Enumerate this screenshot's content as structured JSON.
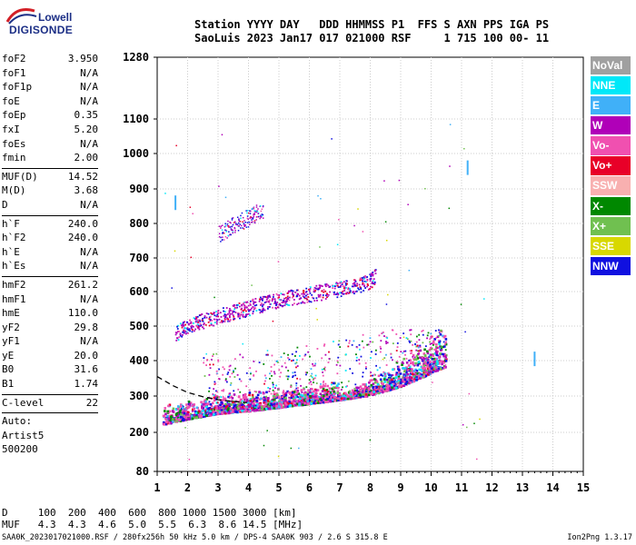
{
  "logo": {
    "line1": "Lowell",
    "line2": "DIGISONDE"
  },
  "header": {
    "line1": "Station YYYY DAY   DDD HHMMSS P1  FFS S AXN PPS IGA PS",
    "line2": "SaoLuis 2023 Jan17 017 021000 RSF     1 715 100 00- 11"
  },
  "params": {
    "group1": [
      {
        "name": "foF2",
        "value": "3.950"
      },
      {
        "name": "foF1",
        "value": "N/A"
      },
      {
        "name": "foF1p",
        "value": "N/A"
      },
      {
        "name": "foE",
        "value": "N/A"
      },
      {
        "name": "foEp",
        "value": "0.35"
      },
      {
        "name": "fxI",
        "value": "5.20"
      },
      {
        "name": "foEs",
        "value": "N/A"
      },
      {
        "name": "fmin",
        "value": "2.00"
      }
    ],
    "group2": [
      {
        "name": "MUF(D)",
        "value": "14.52"
      },
      {
        "name": "M(D)",
        "value": "3.68"
      },
      {
        "name": "D",
        "value": "N/A"
      }
    ],
    "group3": [
      {
        "name": "h`F",
        "value": "240.0"
      },
      {
        "name": "h`F2",
        "value": "240.0"
      },
      {
        "name": "h`E",
        "value": "N/A"
      },
      {
        "name": "h`Es",
        "value": "N/A"
      }
    ],
    "group4": [
      {
        "name": "hmF2",
        "value": "261.2"
      },
      {
        "name": "hmF1",
        "value": "N/A"
      },
      {
        "name": "hmE",
        "value": "110.0"
      },
      {
        "name": "yF2",
        "value": "29.8"
      },
      {
        "name": "yF1",
        "value": "N/A"
      },
      {
        "name": "yE",
        "value": "20.0"
      },
      {
        "name": "B0",
        "value": "31.6"
      },
      {
        "name": "B1",
        "value": "1.74"
      }
    ],
    "group5": [
      {
        "name": "C-level",
        "value": "22"
      }
    ],
    "auto": [
      "Auto:",
      "Artist5",
      "500200"
    ]
  },
  "legend": [
    {
      "label": "NoVal",
      "color": "#a0a0a0"
    },
    {
      "label": "NNE",
      "color": "#00e8f8"
    },
    {
      "label": "E",
      "color": "#40b0f8"
    },
    {
      "label": "W",
      "color": "#b000b8"
    },
    {
      "label": "Vo-",
      "color": "#f050b0"
    },
    {
      "label": "Vo+",
      "color": "#e80028"
    },
    {
      "label": "SSW",
      "color": "#f8b0b0"
    },
    {
      "label": "X-",
      "color": "#008800"
    },
    {
      "label": "X+",
      "color": "#70c050"
    },
    {
      "label": "SSE",
      "color": "#d8d800"
    },
    {
      "label": "NNW",
      "color": "#1010e0"
    }
  ],
  "chart_data": {
    "type": "scatter",
    "title": "",
    "xlabel": "",
    "ylabel": "",
    "xlim": [
      1,
      15
    ],
    "ylim": [
      80,
      1280
    ],
    "xticks": [
      "1",
      "2",
      "3",
      "4",
      "5",
      "6",
      "7",
      "8",
      "9",
      "10",
      "11",
      "12",
      "13",
      "14",
      "15"
    ],
    "yticks": [
      "80",
      "200",
      "300",
      "400",
      "500",
      "600",
      "700",
      "800",
      "900",
      "1000",
      "1100",
      "1280"
    ],
    "y_scale": "non-linear (virtual height, km)",
    "grid": true,
    "series": [
      {
        "name": "O-trace F-layer",
        "points": [
          [
            1.2,
            225
          ],
          [
            2,
            240
          ],
          [
            3,
            255
          ],
          [
            4,
            262
          ],
          [
            5,
            272
          ],
          [
            6,
            282
          ],
          [
            7,
            293
          ],
          [
            8,
            305
          ],
          [
            9,
            330
          ],
          [
            9.8,
            360
          ],
          [
            10.3,
            380
          ],
          [
            10.5,
            385
          ]
        ]
      },
      {
        "name": "2nd hop",
        "points": [
          [
            1.6,
            470
          ],
          [
            2.5,
            505
          ],
          [
            3.5,
            530
          ],
          [
            4.5,
            555
          ],
          [
            5.5,
            575
          ],
          [
            6.5,
            590
          ],
          [
            7.5,
            605
          ],
          [
            8,
            620
          ],
          [
            8.2,
            640
          ]
        ]
      },
      {
        "name": "3rd hop",
        "points": [
          [
            3,
            760
          ],
          [
            3.5,
            790
          ],
          [
            4,
            810
          ],
          [
            4.4,
            830
          ]
        ]
      },
      {
        "name": "spread F (upper)",
        "points": [
          [
            3,
            400
          ],
          [
            4,
            400
          ],
          [
            5,
            400
          ],
          [
            6,
            430
          ],
          [
            7,
            440
          ],
          [
            8,
            470
          ],
          [
            9,
            470
          ],
          [
            10,
            470
          ]
        ]
      },
      {
        "name": "isolated",
        "points": [
          [
            13.4,
            405
          ],
          [
            11.2,
            960
          ],
          [
            1.6,
            860
          ]
        ]
      }
    ],
    "annotations": [
      {
        "name": "auto-scaled F profile",
        "points": [
          [
            1,
            355
          ],
          [
            1.5,
            330
          ],
          [
            2,
            310
          ],
          [
            2.5,
            298
          ],
          [
            3,
            290
          ],
          [
            3.5,
            285
          ],
          [
            3.95,
            282
          ]
        ]
      }
    ]
  },
  "bottom": {
    "row_d": "D     100  200  400  600  800 1000 1500 3000 [km]",
    "row_muf": "MUF   4.3  4.3  4.6  5.0  5.5  6.3  8.6 14.5 [MHz]"
  },
  "footer": {
    "left": "SAA0K_2023017021000.RSF / 280fx256h 50 kHz 5.0 km / DPS-4 SAA0K 903 / 2.6 S 315.8 E",
    "right": "Ion2Png 1.3.17"
  }
}
